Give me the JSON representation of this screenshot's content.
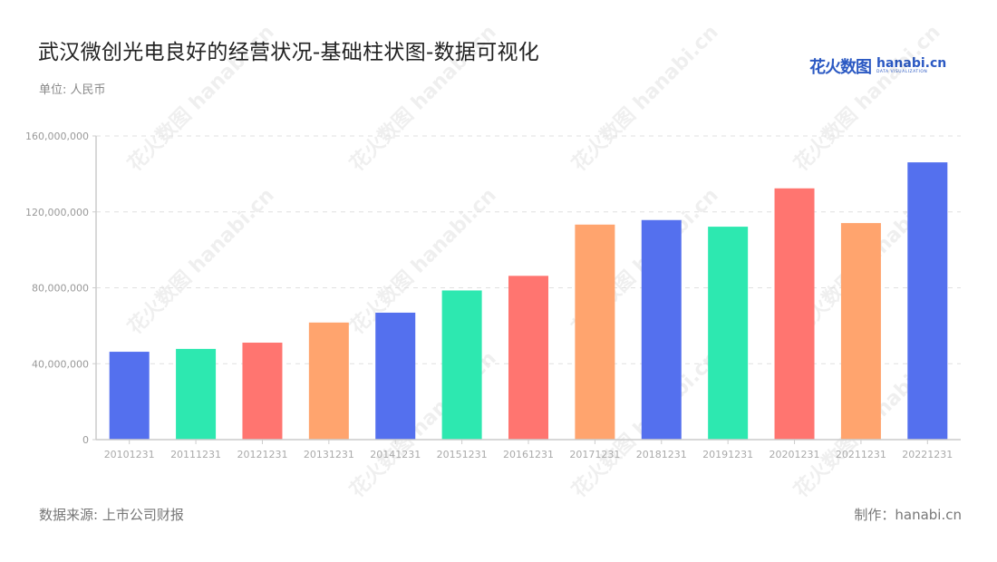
{
  "header": {
    "title": "武汉微创光电良好的经营状况-基础柱状图-数据可视化",
    "unit": "单位: 人民币"
  },
  "logo": {
    "cn": "花火数图",
    "en": "hanabi.cn",
    "sub": "DATA VISUALIZATION"
  },
  "footer": {
    "source": "数据来源: 上市公司财报",
    "maker": "制作：hanabi.cn"
  },
  "watermark": "花火数图 hanabi.cn",
  "colors": {
    "blue": "#5470ee",
    "green": "#2de8b0",
    "red": "#ff7570",
    "orange": "#ffa46e",
    "axis": "#cccccc",
    "grid": "#e0e0e0"
  },
  "chart_data": {
    "type": "bar",
    "title": "武汉微创光电良好的经营状况-基础柱状图-数据可视化",
    "subtitle": "单位: 人民币",
    "xlabel": "",
    "ylabel": "",
    "ylim": [
      0,
      160000000
    ],
    "yticks": [
      0,
      40000000,
      80000000,
      120000000,
      160000000
    ],
    "ytick_labels": [
      "0",
      "40,000,000",
      "80,000,000",
      "120,000,000",
      "160,000,000"
    ],
    "grid": true,
    "legend": null,
    "categories": [
      "20101231",
      "20111231",
      "20121231",
      "20131231",
      "20141231",
      "20151231",
      "20161231",
      "20171231",
      "20181231",
      "20191231",
      "20201231",
      "20211231",
      "20221231"
    ],
    "values": [
      46300000,
      47800000,
      51100000,
      61700000,
      66900000,
      78600000,
      86300000,
      113300000,
      115700000,
      112200000,
      132400000,
      114100000,
      146100000
    ],
    "bar_colors": [
      "#5470ee",
      "#2de8b0",
      "#ff7570",
      "#ffa46e",
      "#5470ee",
      "#2de8b0",
      "#ff7570",
      "#ffa46e",
      "#5470ee",
      "#2de8b0",
      "#ff7570",
      "#ffa46e",
      "#5470ee"
    ],
    "source": "数据来源: 上市公司财报"
  }
}
